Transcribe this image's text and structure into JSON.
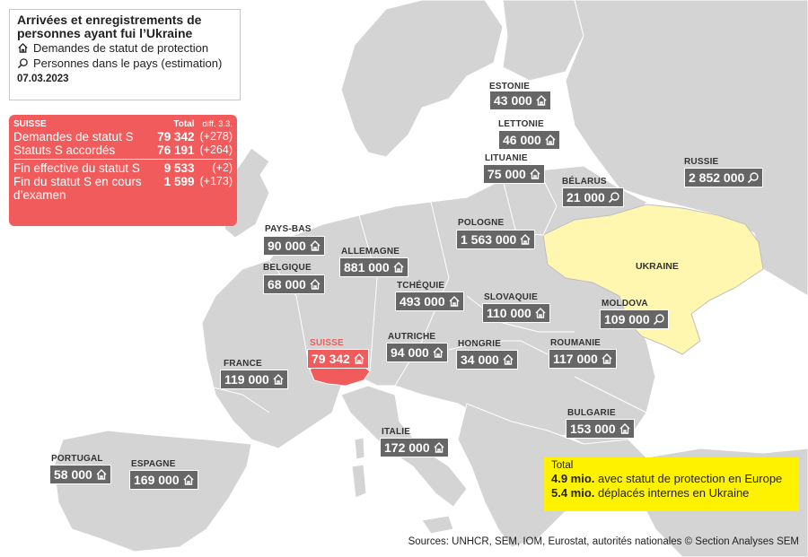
{
  "legend": {
    "title_line1": "Arrivées et enregistrements de",
    "title_line2": "personnes ayant fui l’Ukraine",
    "item_protection": "Demandes de statut de protection",
    "item_estimation": "Personnes dans le pays (estimation)",
    "date": "07.03.2023"
  },
  "suisse_box": {
    "header_country": "SUISSE",
    "header_total": "Total",
    "header_diff": "diff. 3.3.",
    "rows": [
      {
        "label": "Demandes de statut S",
        "total": "79 342",
        "diff": "(+278)"
      },
      {
        "label": "Statuts S accordés",
        "total": "76 191",
        "diff": "(+264)"
      },
      {
        "label": "Fin effective du statut S",
        "total": "9 533",
        "diff": "(+2)"
      },
      {
        "label": "Fin du statut S en cours",
        "total": "1 599",
        "diff": "(+173)"
      }
    ],
    "row4_continuation": "d’examen"
  },
  "countries": [
    {
      "id": "estonie",
      "name": "ESTONIE",
      "value": "43 000",
      "icon": "house-icon"
    },
    {
      "id": "lettonie",
      "name": "LETTONIE",
      "value": "46 000",
      "icon": "house-icon"
    },
    {
      "id": "lituanie",
      "name": "LITUANIE",
      "value": "75 000",
      "icon": "house-icon"
    },
    {
      "id": "belarus",
      "name": "BÉLARUS",
      "value": "21 000",
      "icon": "magnifier-icon"
    },
    {
      "id": "russie",
      "name": "RUSSIE",
      "value": "2 852 000",
      "icon": "magnifier-icon"
    },
    {
      "id": "pologne",
      "name": "POLOGNE",
      "value": "1 563 000",
      "icon": "house-icon"
    },
    {
      "id": "pays-bas",
      "name": "PAYS-BAS",
      "value": "90 000",
      "icon": "house-icon"
    },
    {
      "id": "allemagne",
      "name": "ALLEMAGNE",
      "value": "881 000",
      "icon": "house-icon"
    },
    {
      "id": "belgique",
      "name": "BELGIQUE",
      "value": "68 000",
      "icon": "house-icon"
    },
    {
      "id": "tchequie",
      "name": "TCHÉQUIE",
      "value": "493 000",
      "icon": "house-icon"
    },
    {
      "id": "slovaquie",
      "name": "SLOVAQUIE",
      "value": "110 000",
      "icon": "house-icon"
    },
    {
      "id": "moldova",
      "name": "MOLDOVA",
      "value": "109 000",
      "icon": "magnifier-icon"
    },
    {
      "id": "suisse",
      "name": "SUISSE",
      "value": "79 342",
      "icon": "house-icon"
    },
    {
      "id": "autriche",
      "name": "AUTRICHE",
      "value": "94 000",
      "icon": "house-icon"
    },
    {
      "id": "hongrie",
      "name": "HONGRIE",
      "value": "34 000",
      "icon": "house-icon"
    },
    {
      "id": "roumanie",
      "name": "ROUMANIE",
      "value": "117 000",
      "icon": "house-icon"
    },
    {
      "id": "france",
      "name": "FRANCE",
      "value": "119 000",
      "icon": "house-icon"
    },
    {
      "id": "bulgarie",
      "name": "BULGARIE",
      "value": "153 000",
      "icon": "house-icon"
    },
    {
      "id": "italie",
      "name": "ITALIE",
      "value": "172 000",
      "icon": "house-icon"
    },
    {
      "id": "portugal",
      "name": "PORTUGAL",
      "value": "58 000",
      "icon": "house-icon"
    },
    {
      "id": "espagne",
      "name": "ESPAGNE",
      "value": "169 000",
      "icon": "house-icon"
    }
  ],
  "ukraine_label": "UKRAINE",
  "total_box": {
    "title": "Total",
    "line1_bold": "4.9 mio.",
    "line1_text": " avec statut de protection en Europe",
    "line2_bold": "5.4 mio.",
    "line2_text": " déplacés internes en Ukraine"
  },
  "sources": "Sources: UNHCR, SEM, IOM, Eurostat, autorités nationales   © Section Analyses SEM",
  "colors": {
    "land": "#d4d4d4",
    "sea": "#ffffff",
    "ukraine": "#fff7b0",
    "switzerland": "#f25b5b",
    "value_box": "#666666",
    "total_box": "#fff200"
  }
}
